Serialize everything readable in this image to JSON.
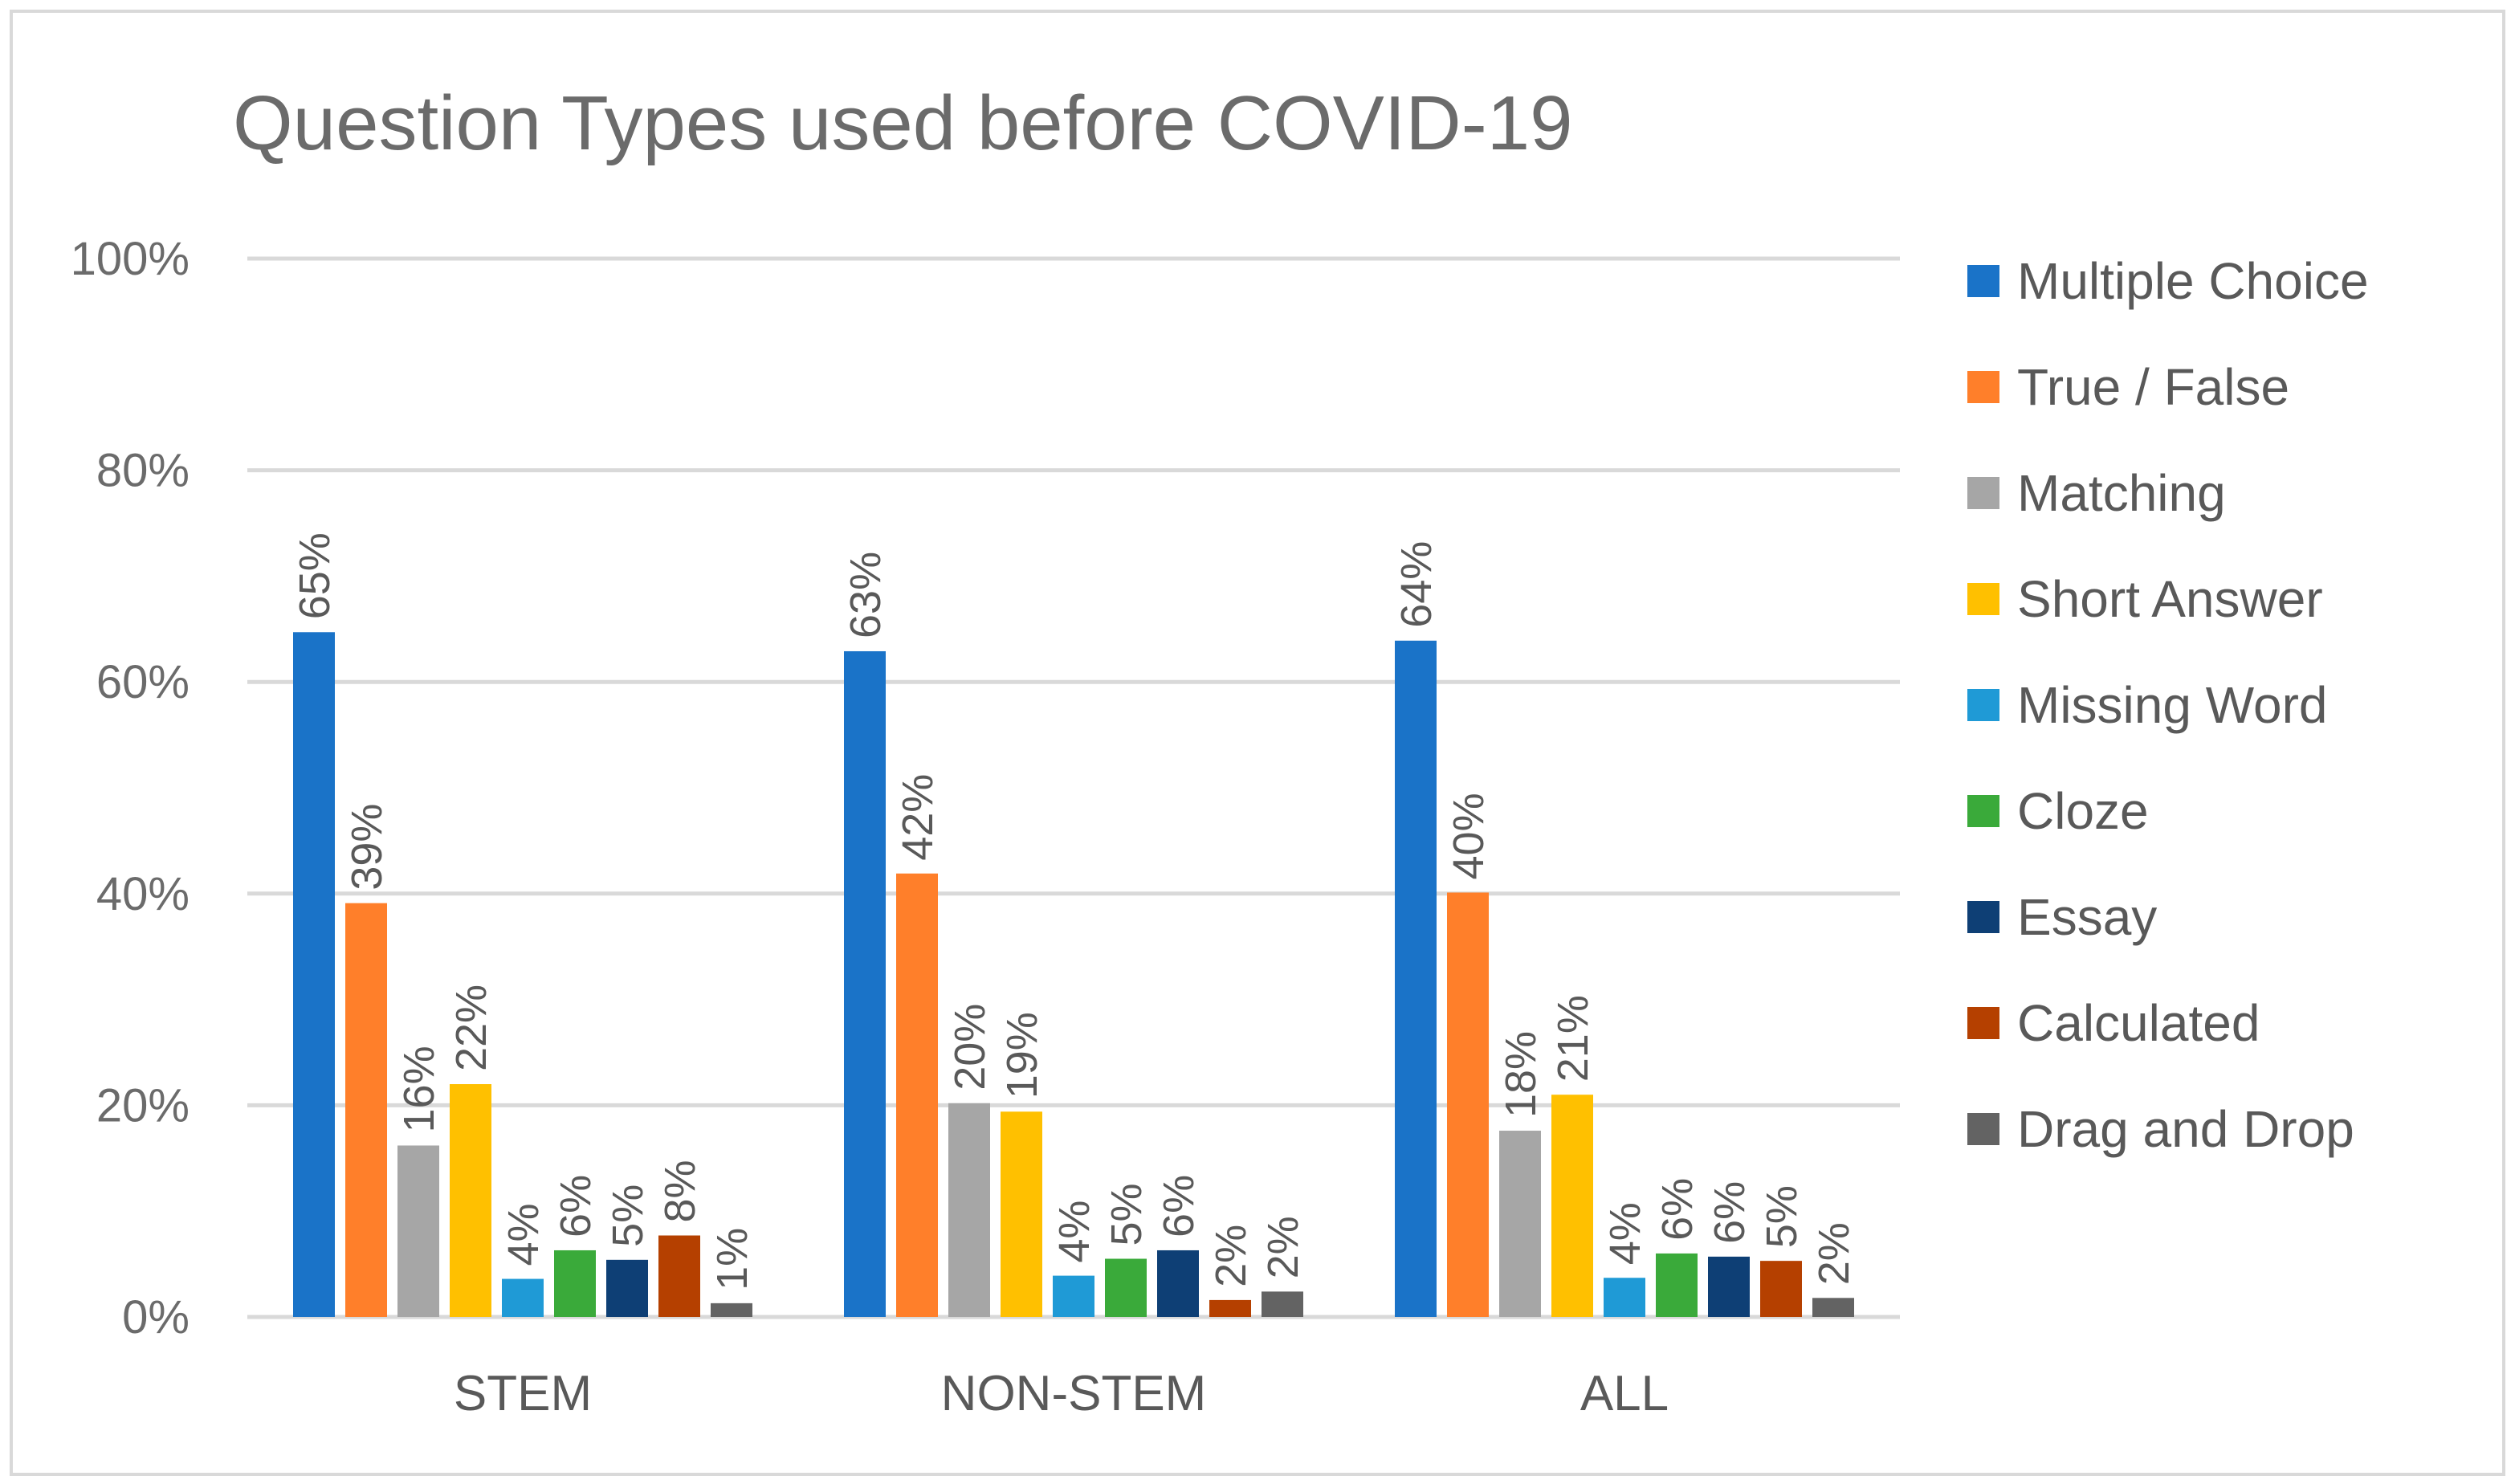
{
  "chart_data": {
    "type": "bar",
    "title": "Question Types used before COVID-19",
    "xlabel": "",
    "ylabel": "",
    "ylim": [
      0,
      100
    ],
    "yticks": [
      0,
      20,
      40,
      60,
      80,
      100
    ],
    "ytick_labels": [
      "0%",
      "20%",
      "40%",
      "60%",
      "80%",
      "100%"
    ],
    "grid": true,
    "legend_position": "right",
    "categories": [
      "STEM",
      "NON-STEM",
      "ALL"
    ],
    "series": [
      {
        "name": "Multiple Choice",
        "color": "#1a73c8",
        "values": [
          64.7,
          62.9,
          63.9
        ],
        "labels": [
          "65%",
          "63%",
          "64%"
        ]
      },
      {
        "name": "True / False",
        "color": "#ff7f2a",
        "values": [
          39.1,
          41.9,
          40.1
        ],
        "labels": [
          "39%",
          "42%",
          "40%"
        ]
      },
      {
        "name": "Matching",
        "color": "#a6a6a6",
        "values": [
          16.2,
          20.2,
          17.6
        ],
        "labels": [
          "16%",
          "20%",
          "18%"
        ]
      },
      {
        "name": "Short Answer",
        "color": "#ffc000",
        "values": [
          22.0,
          19.4,
          21.0
        ],
        "labels": [
          "22%",
          "19%",
          "21%"
        ]
      },
      {
        "name": "Missing Word",
        "color": "#1f9ad6",
        "values": [
          3.6,
          3.9,
          3.7
        ],
        "labels": [
          "4%",
          "4%",
          "4%"
        ]
      },
      {
        "name": "Cloze",
        "color": "#3aaa3a",
        "values": [
          6.3,
          5.5,
          6.0
        ],
        "labels": [
          "6%",
          "5%",
          "6%"
        ]
      },
      {
        "name": "Essay",
        "color": "#0e3f75",
        "values": [
          5.4,
          6.3,
          5.7
        ],
        "labels": [
          "5%",
          "6%",
          "6%"
        ]
      },
      {
        "name": "Calculated",
        "color": "#b54000",
        "values": [
          7.7,
          1.6,
          5.3
        ],
        "labels": [
          "8%",
          "2%",
          "5%"
        ]
      },
      {
        "name": "Drag and Drop",
        "color": "#636363",
        "values": [
          1.3,
          2.4,
          1.8
        ],
        "labels": [
          "1%",
          "2%",
          "2%"
        ]
      }
    ]
  }
}
